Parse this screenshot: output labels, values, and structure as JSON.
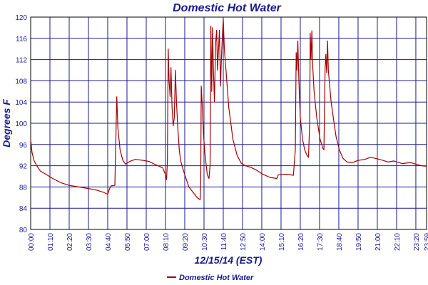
{
  "chart_data": {
    "type": "line",
    "title": "Domestic Hot Water",
    "xlabel": "12/15/14 (EST)",
    "ylabel": "Degrees F",
    "ylim": [
      80,
      120
    ],
    "xlim": [
      0,
      1439
    ],
    "yticks": [
      80,
      84,
      88,
      92,
      96,
      100,
      104,
      108,
      112,
      116,
      120
    ],
    "xticks": [
      {
        "t": 0,
        "label": "00:00"
      },
      {
        "t": 70,
        "label": "01:10"
      },
      {
        "t": 140,
        "label": "02:20"
      },
      {
        "t": 210,
        "label": "03:30"
      },
      {
        "t": 280,
        "label": "04:40"
      },
      {
        "t": 350,
        "label": "05:50"
      },
      {
        "t": 420,
        "label": "07:00"
      },
      {
        "t": 490,
        "label": "08:10"
      },
      {
        "t": 560,
        "label": "09:20"
      },
      {
        "t": 630,
        "label": "10:30"
      },
      {
        "t": 700,
        "label": "11:40"
      },
      {
        "t": 770,
        "label": "12:50"
      },
      {
        "t": 840,
        "label": "14:00"
      },
      {
        "t": 910,
        "label": "15:10"
      },
      {
        "t": 980,
        "label": "16:20"
      },
      {
        "t": 1050,
        "label": "17:30"
      },
      {
        "t": 1120,
        "label": "18:40"
      },
      {
        "t": 1190,
        "label": "19:50"
      },
      {
        "t": 1260,
        "label": "21:00"
      },
      {
        "t": 1330,
        "label": "22:10"
      },
      {
        "t": 1400,
        "label": "23:20"
      },
      {
        "t": 1439,
        "label": "23:59"
      }
    ],
    "grid": true,
    "legend_position": "bottom-center",
    "series": [
      {
        "name": "Domestic Hot Water",
        "color": "#a30000",
        "points": [
          [
            0,
            97
          ],
          [
            5,
            94.5
          ],
          [
            12,
            93
          ],
          [
            22,
            92
          ],
          [
            35,
            91
          ],
          [
            55,
            90.4
          ],
          [
            80,
            89.6
          ],
          [
            110,
            88.8
          ],
          [
            140,
            88.3
          ],
          [
            175,
            88
          ],
          [
            210,
            87.7
          ],
          [
            240,
            87.4
          ],
          [
            265,
            87
          ],
          [
            280,
            86.6
          ],
          [
            286,
            87.6
          ],
          [
            292,
            88.2
          ],
          [
            306,
            88.3
          ],
          [
            313,
            105
          ],
          [
            317,
            99
          ],
          [
            325,
            95
          ],
          [
            335,
            93
          ],
          [
            345,
            92.3
          ],
          [
            360,
            92.8
          ],
          [
            380,
            93.2
          ],
          [
            410,
            93
          ],
          [
            430,
            92.8
          ],
          [
            450,
            92.3
          ],
          [
            480,
            91.6
          ],
          [
            491,
            90.2
          ],
          [
            494,
            89.4
          ],
          [
            497,
            93
          ],
          [
            500,
            114
          ],
          [
            503,
            108
          ],
          [
            507,
            105
          ],
          [
            510,
            110.5
          ],
          [
            514,
            103
          ],
          [
            518,
            99.5
          ],
          [
            522,
            101
          ],
          [
            526,
            110
          ],
          [
            530,
            104
          ],
          [
            535,
            99
          ],
          [
            540,
            95
          ],
          [
            545,
            93
          ],
          [
            550,
            92
          ],
          [
            560,
            90.3
          ],
          [
            575,
            88
          ],
          [
            590,
            87
          ],
          [
            605,
            86
          ],
          [
            616,
            85.6
          ],
          [
            618,
            89
          ],
          [
            620,
            107
          ],
          [
            624,
            103
          ],
          [
            628,
            98
          ],
          [
            634,
            94
          ],
          [
            642,
            90.3
          ],
          [
            648,
            89.6
          ],
          [
            652,
            92
          ],
          [
            655,
            118.3
          ],
          [
            658,
            106
          ],
          [
            661,
            118
          ],
          [
            664,
            110.5
          ],
          [
            668,
            104
          ],
          [
            672,
            115
          ],
          [
            676,
            117.5
          ],
          [
            679,
            110
          ],
          [
            682,
            113
          ],
          [
            686,
            117.5
          ],
          [
            690,
            107
          ],
          [
            693,
            112
          ],
          [
            697,
            116.5
          ],
          [
            700,
            119.6
          ],
          [
            704,
            114
          ],
          [
            710,
            110
          ],
          [
            720,
            103
          ],
          [
            735,
            97
          ],
          [
            750,
            94
          ],
          [
            765,
            92.5
          ],
          [
            780,
            92
          ],
          [
            800,
            91.7
          ],
          [
            820,
            91.2
          ],
          [
            840,
            90.5
          ],
          [
            870,
            89.8
          ],
          [
            895,
            89.6
          ],
          [
            900,
            90.3
          ],
          [
            930,
            90.4
          ],
          [
            955,
            90.2
          ],
          [
            962,
            95
          ],
          [
            965,
            113.3
          ],
          [
            968,
            110
          ],
          [
            971,
            115.5
          ],
          [
            975,
            108
          ],
          [
            980,
            101
          ],
          [
            988,
            97
          ],
          [
            996,
            95
          ],
          [
            1004,
            94
          ],
          [
            1010,
            93.6
          ],
          [
            1014,
            100
          ],
          [
            1016,
            117
          ],
          [
            1019,
            112
          ],
          [
            1022,
            117.4
          ],
          [
            1025,
            111
          ],
          [
            1030,
            106
          ],
          [
            1040,
            101
          ],
          [
            1052,
            97
          ],
          [
            1062,
            95.3
          ],
          [
            1066,
            95
          ],
          [
            1070,
            110
          ],
          [
            1073,
            113
          ],
          [
            1076,
            109.5
          ],
          [
            1079,
            115.5
          ],
          [
            1082,
            110
          ],
          [
            1087,
            107
          ],
          [
            1092,
            104
          ],
          [
            1100,
            101
          ],
          [
            1110,
            97.5
          ],
          [
            1122,
            95
          ],
          [
            1135,
            93.4
          ],
          [
            1150,
            92.7
          ],
          [
            1170,
            92.6
          ],
          [
            1190,
            93
          ],
          [
            1215,
            93.2
          ],
          [
            1235,
            93.6
          ],
          [
            1260,
            93.3
          ],
          [
            1280,
            93
          ],
          [
            1300,
            92.7
          ],
          [
            1320,
            92.9
          ],
          [
            1350,
            92.4
          ],
          [
            1380,
            92.6
          ],
          [
            1400,
            92.3
          ],
          [
            1420,
            92
          ],
          [
            1439,
            91.9
          ]
        ]
      }
    ]
  }
}
